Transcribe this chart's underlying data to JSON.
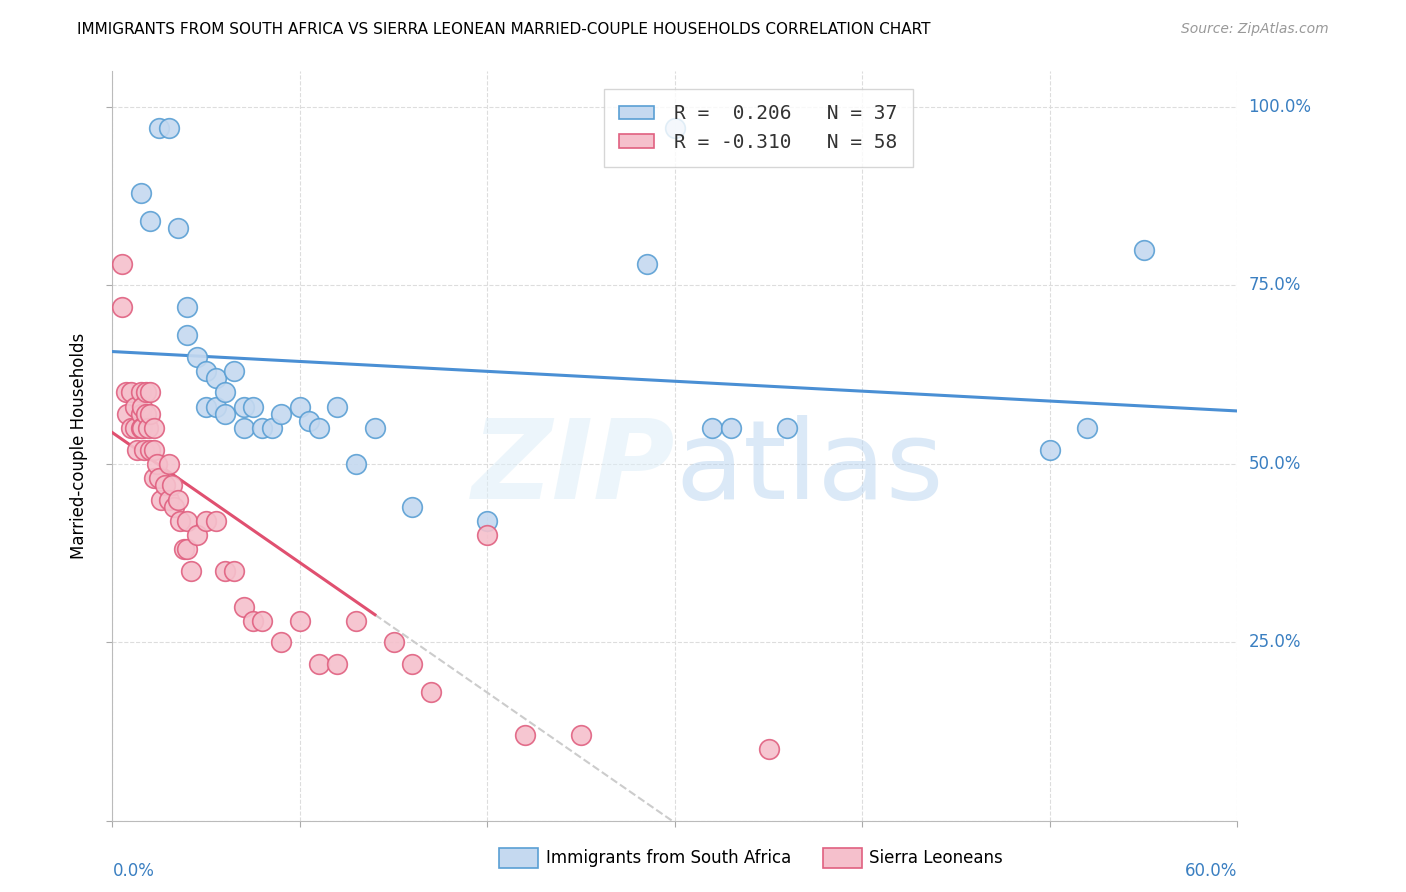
{
  "title": "IMMIGRANTS FROM SOUTH AFRICA VS SIERRA LEONEAN MARRIED-COUPLE HOUSEHOLDS CORRELATION CHART",
  "source": "Source: ZipAtlas.com",
  "ylabel": "Married-couple Households",
  "legend_r1_color": "#4a90d9",
  "legend_r2_color": "#e05878",
  "legend_r1": "R =  0.206   N = 37",
  "legend_r2": "R = -0.310   N = 58",
  "blue_fill": "#c5d9f0",
  "pink_fill": "#f5c0cc",
  "blue_edge": "#5a9fd4",
  "pink_edge": "#e06080",
  "blue_line": "#4a8fd4",
  "pink_line": "#e05070",
  "watermark_color": "#ddeeff",
  "blue_scatter_x": [
    0.015,
    0.02,
    0.025,
    0.03,
    0.035,
    0.04,
    0.04,
    0.045,
    0.05,
    0.05,
    0.055,
    0.055,
    0.06,
    0.06,
    0.065,
    0.07,
    0.07,
    0.075,
    0.08,
    0.085,
    0.09,
    0.1,
    0.105,
    0.11,
    0.12,
    0.13,
    0.14,
    0.16,
    0.2,
    0.285,
    0.3,
    0.32,
    0.33,
    0.36,
    0.5,
    0.52,
    0.55
  ],
  "blue_scatter_y": [
    0.88,
    0.84,
    0.97,
    0.97,
    0.83,
    0.72,
    0.68,
    0.65,
    0.63,
    0.58,
    0.62,
    0.58,
    0.6,
    0.57,
    0.63,
    0.58,
    0.55,
    0.58,
    0.55,
    0.55,
    0.57,
    0.58,
    0.56,
    0.55,
    0.58,
    0.5,
    0.55,
    0.44,
    0.42,
    0.78,
    0.97,
    0.55,
    0.55,
    0.55,
    0.52,
    0.55,
    0.8
  ],
  "pink_scatter_x": [
    0.005,
    0.005,
    0.007,
    0.008,
    0.01,
    0.01,
    0.012,
    0.012,
    0.013,
    0.015,
    0.015,
    0.015,
    0.016,
    0.016,
    0.017,
    0.018,
    0.018,
    0.019,
    0.02,
    0.02,
    0.02,
    0.022,
    0.022,
    0.022,
    0.024,
    0.025,
    0.026,
    0.028,
    0.03,
    0.03,
    0.032,
    0.033,
    0.035,
    0.036,
    0.038,
    0.04,
    0.04,
    0.042,
    0.045,
    0.05,
    0.055,
    0.06,
    0.065,
    0.07,
    0.075,
    0.08,
    0.09,
    0.1,
    0.11,
    0.12,
    0.13,
    0.15,
    0.16,
    0.17,
    0.2,
    0.22,
    0.25,
    0.35
  ],
  "pink_scatter_y": [
    0.78,
    0.72,
    0.6,
    0.57,
    0.6,
    0.55,
    0.58,
    0.55,
    0.52,
    0.6,
    0.57,
    0.55,
    0.58,
    0.55,
    0.52,
    0.6,
    0.57,
    0.55,
    0.6,
    0.57,
    0.52,
    0.55,
    0.52,
    0.48,
    0.5,
    0.48,
    0.45,
    0.47,
    0.5,
    0.45,
    0.47,
    0.44,
    0.45,
    0.42,
    0.38,
    0.42,
    0.38,
    0.35,
    0.4,
    0.42,
    0.42,
    0.35,
    0.35,
    0.3,
    0.28,
    0.28,
    0.25,
    0.28,
    0.22,
    0.22,
    0.28,
    0.25,
    0.22,
    0.18,
    0.4,
    0.12,
    0.12,
    0.1
  ],
  "xlim": [
    0.0,
    0.6
  ],
  "ylim": [
    0.0,
    1.05
  ],
  "xticks": [
    0.0,
    0.1,
    0.2,
    0.3,
    0.4,
    0.5,
    0.6
  ],
  "yticks": [
    0.0,
    0.25,
    0.5,
    0.75,
    1.0
  ],
  "ytick_labels": [
    "",
    "25.0%",
    "50.0%",
    "75.0%",
    "100.0%"
  ]
}
